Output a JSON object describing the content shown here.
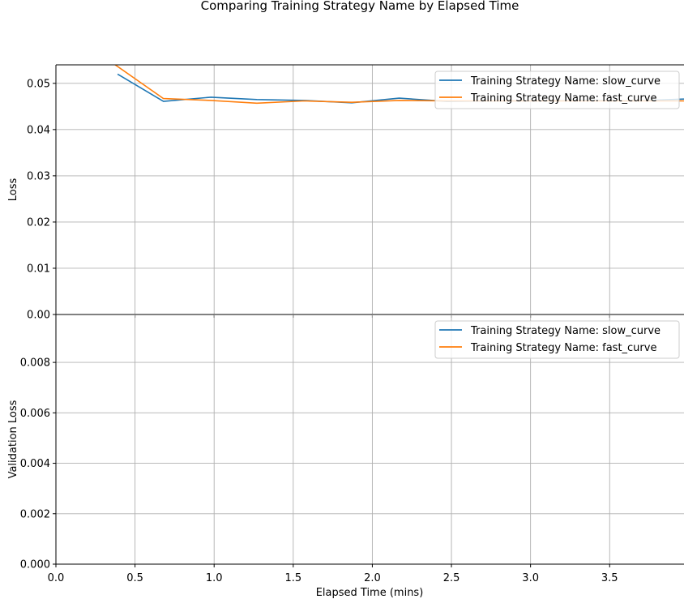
{
  "chart_data": {
    "type": "line",
    "title": "Comparing Training Strategy Name by Elapsed Time",
    "xlabel": "Elapsed Time (mins)",
    "xlim": [
      0,
      3.97
    ],
    "x_ticks": [
      "0.0",
      "0.5",
      "1.0",
      "1.5",
      "2.0",
      "2.5",
      "3.0",
      "3.5"
    ],
    "x_tick_values": [
      0,
      0.5,
      1.0,
      1.5,
      2.0,
      2.5,
      3.0,
      3.5
    ],
    "grid": true,
    "colors": {
      "slow_curve": "#1f77b4",
      "fast_curve": "#ff7f0e"
    },
    "panels": [
      {
        "ylabel": "Loss",
        "ylim": [
          0,
          0.054
        ],
        "y_ticks": [
          "0.00",
          "0.01",
          "0.02",
          "0.03",
          "0.04",
          "0.05"
        ],
        "y_tick_values": [
          0,
          0.01,
          0.02,
          0.03,
          0.04,
          0.05
        ],
        "legend": "upper right",
        "series": [
          {
            "name": "Training Strategy Name: slow_curve",
            "key": "slow_curve",
            "x": [
              0.39,
              0.68,
              0.98,
              1.27,
              1.57,
              1.87,
              2.17,
              2.47,
              2.77,
              3.07,
              3.37,
              3.67,
              3.97
            ],
            "y": [
              0.052,
              0.0461,
              0.047,
              0.0465,
              0.0463,
              0.0458,
              0.0468,
              0.0461,
              0.0462,
              0.0462,
              0.0463,
              0.0462,
              0.0466
            ]
          },
          {
            "name": "Training Strategy Name: fast_curve",
            "key": "fast_curve",
            "x": [
              0.25,
              0.68,
              0.98,
              1.27,
              1.57,
              1.87,
              2.17,
              2.47,
              2.77,
              3.07,
              3.37,
              3.67,
              3.97
            ],
            "y": [
              0.057,
              0.0467,
              0.0463,
              0.0457,
              0.0462,
              0.0459,
              0.0463,
              0.0462,
              0.0462,
              0.0462,
              0.0462,
              0.0462,
              0.0462
            ]
          }
        ]
      },
      {
        "ylabel": "Validation Loss",
        "ylim": [
          0,
          0.0099
        ],
        "y_ticks": [
          "0.000",
          "0.002",
          "0.004",
          "0.006",
          "0.008"
        ],
        "y_tick_values": [
          0,
          0.002,
          0.004,
          0.006,
          0.008
        ],
        "legend": "upper right",
        "series": [
          {
            "name": "Training Strategy Name: slow_curve",
            "key": "slow_curve",
            "x": [],
            "y": []
          },
          {
            "name": "Training Strategy Name: fast_curve",
            "key": "fast_curve",
            "x": [],
            "y": []
          }
        ]
      }
    ]
  }
}
